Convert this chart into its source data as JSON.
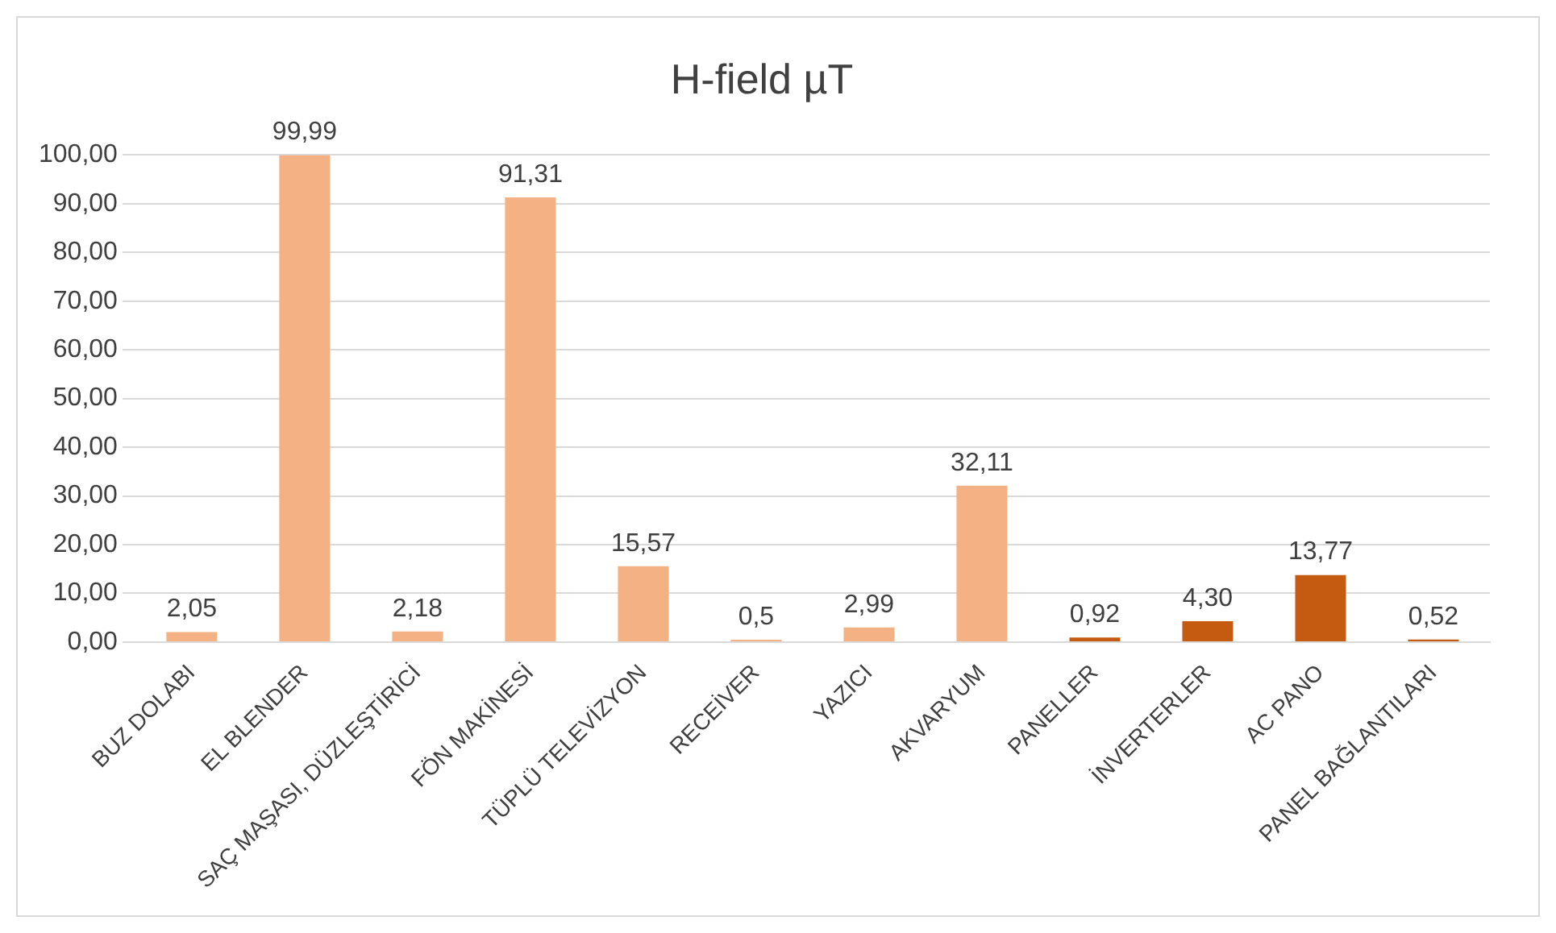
{
  "chart_data": {
    "type": "bar",
    "title": "H-field µT",
    "categories": [
      "BUZ DOLABI",
      "EL BLENDER",
      "SAÇ MAŞASI, DÜZLEŞTİRİCİ",
      "FÖN MAKİNESİ",
      "TÜPLÜ TELEVİZYON",
      "RECEİVER",
      "YAZICI",
      "AKVARYUM",
      "PANELLER",
      "İNVERTERLER",
      "AC PANO",
      "PANEL BAĞLANTILARI"
    ],
    "values": [
      2.05,
      99.99,
      2.18,
      91.31,
      15.57,
      0.5,
      2.99,
      32.11,
      0.92,
      4.3,
      13.77,
      0.52
    ],
    "value_labels": [
      "2,05",
      "99,99",
      "2,18",
      "91,31",
      "15,57",
      "0,5",
      "2,99",
      "32,11",
      "0,92",
      "4,30",
      "13,77",
      "0,52"
    ],
    "colors": [
      "#f4b183",
      "#f4b183",
      "#f4b183",
      "#f4b183",
      "#f4b183",
      "#f4b183",
      "#f4b183",
      "#f4b183",
      "#c55a11",
      "#c55a11",
      "#c55a11",
      "#c55a11"
    ],
    "ylim": [
      0,
      100
    ],
    "yticks": [
      {
        "value": 0,
        "label": "0,00"
      },
      {
        "value": 10,
        "label": "10,00"
      },
      {
        "value": 20,
        "label": "20,00"
      },
      {
        "value": 30,
        "label": "30,00"
      },
      {
        "value": 40,
        "label": "40,00"
      },
      {
        "value": 50,
        "label": "50,00"
      },
      {
        "value": 60,
        "label": "60,00"
      },
      {
        "value": 70,
        "label": "70,00"
      },
      {
        "value": 80,
        "label": "80,00"
      },
      {
        "value": 90,
        "label": "90,00"
      },
      {
        "value": 100,
        "label": "100,00"
      }
    ],
    "grid": "y"
  }
}
